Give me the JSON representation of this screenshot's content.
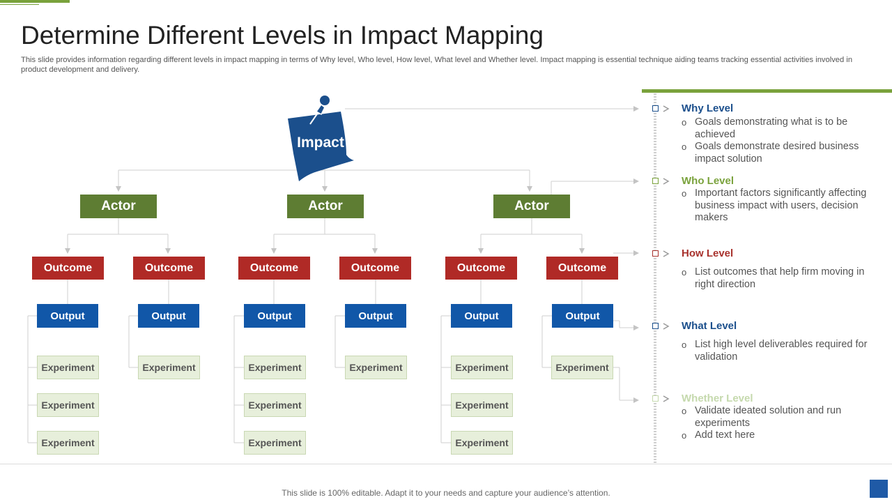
{
  "slide": {
    "title": "Determine Different Levels in Impact Mapping",
    "subtitle": "This slide provides information regarding different levels in impact mapping in terms of Why level, Who level, How level, What level and Whether level. Impact mapping is essential technique aiding teams tracking essential activities involved in product development and delivery.",
    "footer": "This slide is 100% editable. Adapt it to your needs and capture your audience’s attention."
  },
  "diagram": {
    "impact_label": "Impact",
    "actors": [
      {
        "label": "Actor",
        "outcomes": [
          {
            "label": "Outcome",
            "output": "Output",
            "experiments": [
              "Experiment",
              "Experiment",
              "Experiment"
            ]
          },
          {
            "label": "Outcome",
            "output": "Output",
            "experiments": [
              "Experiment"
            ]
          }
        ]
      },
      {
        "label": "Actor",
        "outcomes": [
          {
            "label": "Outcome",
            "output": "Output",
            "experiments": [
              "Experiment",
              "Experiment",
              "Experiment"
            ]
          },
          {
            "label": "Outcome",
            "output": "Output",
            "experiments": [
              "Experiment"
            ]
          }
        ]
      },
      {
        "label": "Actor",
        "outcomes": [
          {
            "label": "Outcome",
            "output": "Output",
            "experiments": [
              "Experiment",
              "Experiment",
              "Experiment"
            ]
          },
          {
            "label": "Outcome",
            "output": "Output",
            "experiments": [
              "Experiment"
            ]
          }
        ]
      }
    ]
  },
  "levels": [
    {
      "title": "Why Level",
      "color": "#1b4f8c",
      "bullets": [
        "Goals demonstrating what is to be achieved",
        "Goals demonstrate desired business impact solution"
      ]
    },
    {
      "title": "Who Level",
      "color": "#7aa23c",
      "bullets": [
        "Important factors significantly affecting business impact with users, decision makers"
      ]
    },
    {
      "title": "How Level",
      "color": "#a8322d",
      "bullets": [
        "List outcomes that help firm moving in right direction"
      ]
    },
    {
      "title": "What Level",
      "color": "#1b4f8c",
      "bullets": [
        "List high level deliverables required for validation"
      ]
    },
    {
      "title": "Whether Level",
      "color": "#c5d9ad",
      "bullets": [
        "Validate ideated solution and run experiments",
        "Add text here"
      ]
    }
  ],
  "colors": {
    "actor": "#5e7d33",
    "outcome": "#b02a26",
    "output": "#1157a8",
    "experiment": "#e7efdb",
    "impact": "#1b4f8c",
    "accent_bar": "#7aa23c"
  },
  "icons": [
    "pushpin-icon",
    "arrow-right-icon"
  ]
}
